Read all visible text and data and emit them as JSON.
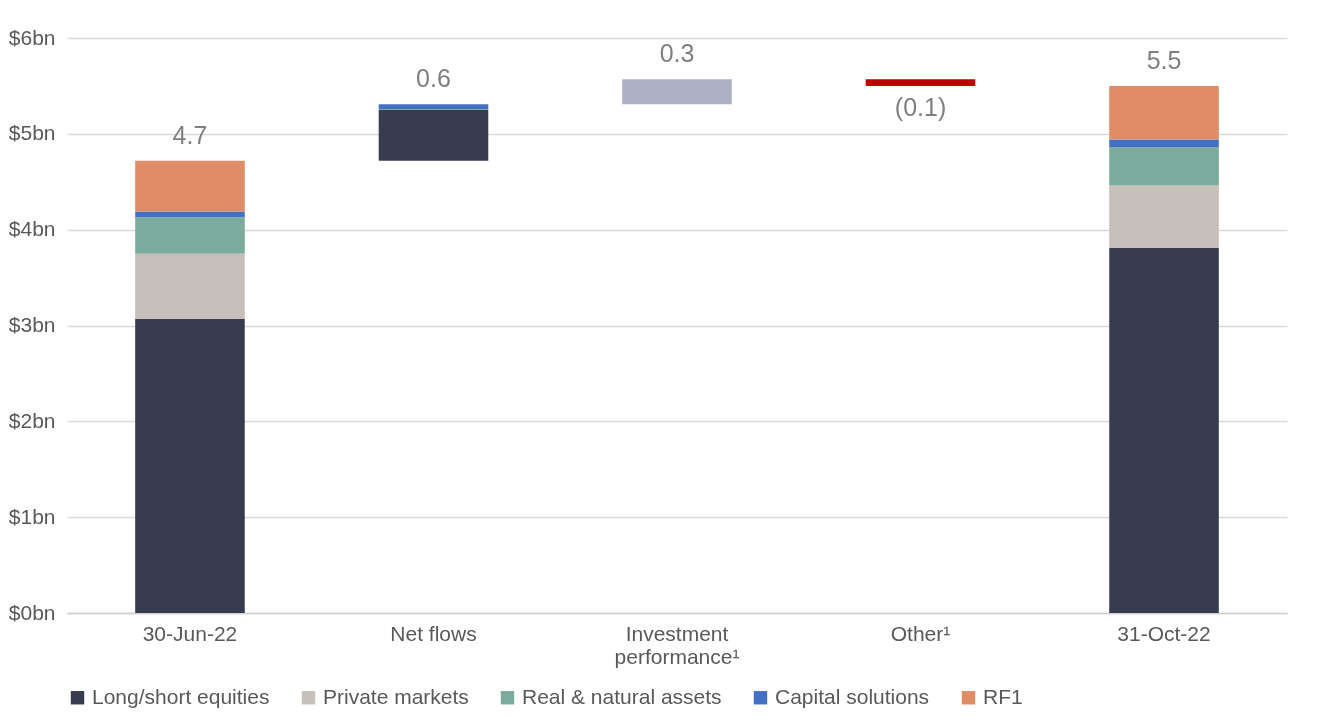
{
  "chart_data": {
    "type": "bar",
    "stacked": true,
    "categories": [
      "30-Jun-22",
      "Net flows",
      "Investment performance¹",
      "Other¹",
      "31-Oct-22"
    ],
    "series": [
      {
        "name": "Long/short equities",
        "color": "#373d4f",
        "values": [
          3.07,
          0.53,
          null,
          null,
          3.81
        ],
        "base": [
          null,
          4.72,
          null,
          null,
          null
        ]
      },
      {
        "name": "Private markets",
        "color": "#c7bfb9",
        "values": [
          0.68,
          null,
          null,
          null,
          0.65
        ]
      },
      {
        "name": "Real & natural assets",
        "color": "#7aab9c",
        "values": [
          0.38,
          0.01,
          null,
          null,
          0.4
        ],
        "base": [
          null,
          5.25,
          null,
          null,
          null
        ]
      },
      {
        "name": "Capital solutions",
        "color": "#4470c4",
        "values": [
          0.06,
          0.05,
          null,
          null,
          0.08
        ],
        "base": [
          null,
          5.26,
          null,
          null,
          null
        ]
      },
      {
        "name": "RF1",
        "color": "#e08c67",
        "values": [
          0.53,
          null,
          null,
          null,
          0.56
        ]
      },
      {
        "color": "#adb1c3",
        "values": [
          null,
          null,
          0.26,
          null,
          null
        ],
        "base": [
          null,
          null,
          5.31,
          null,
          null
        ]
      },
      {
        "color": "#c00000",
        "values": [
          null,
          null,
          null,
          -0.07,
          null
        ],
        "base": [
          null,
          null,
          null,
          5.57,
          null
        ]
      }
    ],
    "totals": [
      "4.7",
      "0.6",
      "0.3",
      "(0.1)",
      "5.5"
    ],
    "ylim": [
      0,
      6
    ],
    "yticks": [
      {
        "value": 0,
        "label": "$0bn"
      },
      {
        "value": 1,
        "label": "$1bn"
      },
      {
        "value": 2,
        "label": "$2bn"
      },
      {
        "value": 3,
        "label": "$3bn"
      },
      {
        "value": 4,
        "label": "$4bn"
      },
      {
        "value": 5,
        "label": "$5bn"
      },
      {
        "value": 6,
        "label": "$6bn"
      }
    ],
    "grid": "y",
    "legend": "bottom"
  }
}
